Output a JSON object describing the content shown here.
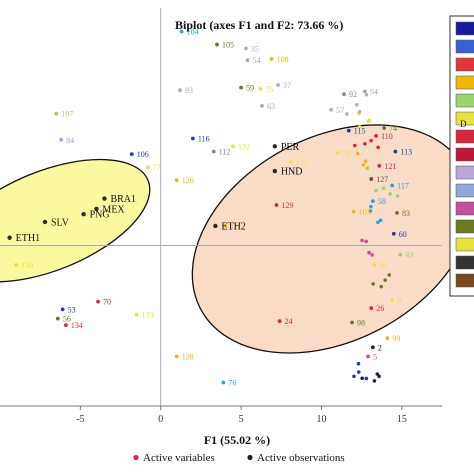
{
  "chart_data": {
    "type": "scatter",
    "title": "Biplot (axes F1 and F2: 73.66 %)",
    "xlabel": "F1 (55.02 %)",
    "ylabel": "",
    "xlim": [
      -10,
      17.5
    ],
    "ylim": [
      -12.3,
      18.2
    ],
    "x_ticks": [
      "-5",
      "0",
      "5",
      "10",
      "15"
    ],
    "x_tick_values": [
      -5,
      0,
      5,
      10,
      15
    ],
    "legend": [
      {
        "name": "Active variables",
        "color": "#d7263d"
      },
      {
        "name": "Active observations",
        "color": "#222222"
      }
    ],
    "legend_placement": "bottom",
    "active_observations": [
      {
        "label": "PER",
        "x": 7.1,
        "y": 7.6
      },
      {
        "label": "HND",
        "x": 7.1,
        "y": 5.7
      },
      {
        "label": "ETH2",
        "x": 3.4,
        "y": 1.5
      },
      {
        "label": "BRA1",
        "x": -3.5,
        "y": 3.6
      },
      {
        "label": "MEX",
        "x": -4.0,
        "y": 2.8
      },
      {
        "label": "PNG",
        "x": -4.8,
        "y": 2.4
      },
      {
        "label": "SLV",
        "x": -7.2,
        "y": 1.8
      },
      {
        "label": "ETH1",
        "x": -9.4,
        "y": 0.6
      }
    ],
    "active_variables": [
      {
        "label": "104",
        "x": 1.3,
        "y": 16.4,
        "color": "#29a3e0"
      },
      {
        "label": "105",
        "x": 3.5,
        "y": 15.4,
        "color": "#6b7a1e"
      },
      {
        "label": "35",
        "x": 5.3,
        "y": 15.1,
        "color": "#b9a6d6"
      },
      {
        "label": "54",
        "x": 5.4,
        "y": 14.2,
        "color": "#aaaaaa"
      },
      {
        "label": "108",
        "x": 6.9,
        "y": 14.3,
        "color": "#f2b705"
      },
      {
        "label": "93",
        "x": 1.2,
        "y": 11.9,
        "color": "#aaaaaa"
      },
      {
        "label": "59",
        "x": 5.0,
        "y": 12.1,
        "color": "#6b7a1e"
      },
      {
        "label": "75",
        "x": 6.2,
        "y": 12.0,
        "color": "#e8e33a"
      },
      {
        "label": "37",
        "x": 7.3,
        "y": 12.3,
        "color": "#b9a6d6"
      },
      {
        "label": "63",
        "x": 6.3,
        "y": 10.7,
        "color": "#aaaaaa"
      },
      {
        "label": "107",
        "x": -6.5,
        "y": 10.1,
        "color": "#9bd36a"
      },
      {
        "label": "84",
        "x": -6.2,
        "y": 8.1,
        "color": "#8fa8d9"
      },
      {
        "label": "116",
        "x": 2.0,
        "y": 8.2,
        "color": "#1f3ea8"
      },
      {
        "label": "112",
        "x": 3.3,
        "y": 7.2,
        "color": "#888888"
      },
      {
        "label": "106",
        "x": -1.8,
        "y": 7.0,
        "color": "#1f3ea8"
      },
      {
        "label": "77",
        "x": -0.8,
        "y": 6.0,
        "color": "#e8e33a"
      },
      {
        "label": "126",
        "x": 1.0,
        "y": 5.0,
        "color": "#f2b705"
      },
      {
        "label": "132",
        "x": 4.5,
        "y": 7.6,
        "color": "#e8e33a"
      },
      {
        "label": "129",
        "x": 7.2,
        "y": 3.1,
        "color": "#d7263d"
      },
      {
        "label": "111",
        "x": 4.0,
        "y": 1.5,
        "color": "#f2b705"
      },
      {
        "label": "131",
        "x": 8.1,
        "y": 6.4,
        "color": "#e8e33a"
      },
      {
        "label": "79",
        "x": 11.0,
        "y": 7.1,
        "color": "#e8e33a"
      },
      {
        "label": "103",
        "x": 12.0,
        "y": 2.6,
        "color": "#f2b705"
      },
      {
        "label": "130",
        "x": -9.0,
        "y": -1.5,
        "color": "#e8e33a"
      },
      {
        "label": "70",
        "x": -3.9,
        "y": -4.3,
        "color": "#d7263d"
      },
      {
        "label": "133",
        "x": -1.5,
        "y": -5.3,
        "color": "#e8e33a"
      },
      {
        "label": "53",
        "x": -6.1,
        "y": -4.9,
        "color": "#1f3ea8"
      },
      {
        "label": "56",
        "x": -6.4,
        "y": -5.6,
        "color": "#6b7a1e"
      },
      {
        "label": "134",
        "x": -5.9,
        "y": -6.1,
        "color": "#d7263d"
      },
      {
        "label": "128",
        "x": 1.0,
        "y": -8.5,
        "color": "#f2b705"
      },
      {
        "label": "76",
        "x": 3.9,
        "y": -10.5,
        "color": "#29a3e0"
      },
      {
        "label": "24",
        "x": 7.4,
        "y": -5.8,
        "color": "#d7263d"
      },
      {
        "label": "98",
        "x": 11.9,
        "y": -5.9,
        "color": "#6b7a1e"
      },
      {
        "label": "26",
        "x": 13.1,
        "y": -4.8,
        "color": "#d7263d"
      },
      {
        "label": "2",
        "x": 13.2,
        "y": -7.8,
        "color": "#222244"
      },
      {
        "label": "5",
        "x": 12.9,
        "y": -8.5,
        "color": "#c44fa0"
      },
      {
        "label": "90",
        "x": 14.1,
        "y": -7.1,
        "color": "#f2b705"
      },
      {
        "label": "91",
        "x": 13.3,
        "y": -1.5,
        "color": "#e8e33a"
      },
      {
        "label": "58",
        "x": 13.2,
        "y": 3.4,
        "color": "#29a3e0"
      },
      {
        "label": "83",
        "x": 14.7,
        "y": 2.5,
        "color": "#6b7a1e"
      },
      {
        "label": "60",
        "x": 14.5,
        "y": 0.9,
        "color": "#1f3ea8"
      },
      {
        "label": "74",
        "x": 13.9,
        "y": 9.0,
        "color": "#6b7a1e"
      },
      {
        "label": "110",
        "x": 13.4,
        "y": 8.4,
        "color": "#d7263d"
      },
      {
        "label": "115",
        "x": 11.7,
        "y": 8.8,
        "color": "#1f3ea8"
      },
      {
        "label": "113",
        "x": 14.6,
        "y": 7.2,
        "color": "#1f3ea8"
      },
      {
        "label": "121",
        "x": 13.6,
        "y": 6.1,
        "color": "#d7263d"
      },
      {
        "label": "117",
        "x": 14.4,
        "y": 4.6,
        "color": "#29a3e0"
      },
      {
        "label": "127",
        "x": 13.1,
        "y": 5.1,
        "color": "#555555"
      },
      {
        "label": "94",
        "x": 12.7,
        "y": 11.8,
        "color": "#aaaaaa"
      },
      {
        "label": "92",
        "x": 11.4,
        "y": 11.6,
        "color": "#888888"
      },
      {
        "label": "57",
        "x": 10.6,
        "y": 10.4,
        "color": "#b9a6d6"
      },
      {
        "label": "43",
        "x": 14.9,
        "y": -0.7,
        "color": "#9bd36a"
      },
      {
        "label": "9",
        "x": 14.4,
        "y": -4.2,
        "color": "#e8e33a"
      }
    ],
    "unlabeled_variable_clusters": [
      {
        "color": "#e8e33a",
        "x": 13.0,
        "y": 9.5
      },
      {
        "color": "#f2b705",
        "x": 12.6,
        "y": 6.6
      },
      {
        "color": "#b9a6d6",
        "x": 12.1,
        "y": 10.8
      },
      {
        "color": "#9bd36a",
        "x": 14.0,
        "y": 4.3
      },
      {
        "color": "#29a3e0",
        "x": 13.6,
        "y": 2.2
      },
      {
        "color": "#c44fa0",
        "x": 13.2,
        "y": -0.3
      },
      {
        "color": "#6b7a1e",
        "x": 13.8,
        "y": -2.5
      },
      {
        "color": "#d7263d",
        "x": 12.8,
        "y": 7.8
      },
      {
        "color": "#1f3ea8",
        "x": 12.4,
        "y": -9.6
      },
      {
        "color": "#222244",
        "x": 12.9,
        "y": -10.6
      }
    ],
    "ellipses": [
      {
        "name": "group-left",
        "fill": "#fbf9a0",
        "cx": -7.0,
        "cy": 1.9,
        "rx": 6.7,
        "ry": 3.8,
        "rotation_deg": -22
      },
      {
        "name": "group-right",
        "fill": "#f8dcc8",
        "cx": 10.7,
        "cy": 0.5,
        "rx": 9.3,
        "ry": 7.8,
        "rotation_deg": -28
      }
    ],
    "palette_strip": [
      "#1a1aa0",
      "#3b5fd6",
      "#e33535",
      "#f2b705",
      "#9bd36a",
      "#e8e33a",
      "#d7263d",
      "#c4163a",
      "#b9a6d6",
      "#8fa8d9",
      "#c44fa0",
      "#6b7a1e",
      "#e8e33a",
      "#333333",
      "#7a4a1e"
    ],
    "palette_strip_label": "D",
    "grid": false
  }
}
